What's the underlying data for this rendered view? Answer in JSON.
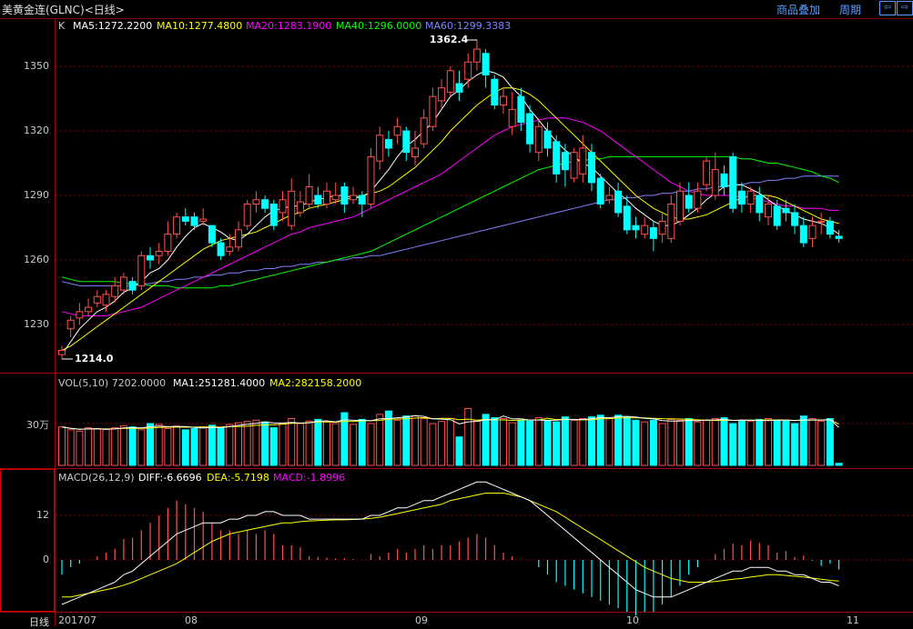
{
  "header": {
    "title": "美黄金连(GLNC)<日线>",
    "overlay_button": "商品叠加",
    "period_button": "周期",
    "nav_prev_glyph": "⇦",
    "nav_next_glyph": "⇨"
  },
  "price_panel": {
    "label_k": "K",
    "ma5": "MA5:1272.2200",
    "ma10": "MA10:1277.4800",
    "ma20": "MA20:1283.1900",
    "ma40": "MA40:1296.0000",
    "ma60": "MA60:1299.3383",
    "high_marker": "1362.4",
    "low_marker": "1214.0",
    "y_ticks": [
      "1350",
      "1320",
      "1290",
      "1260",
      "1230"
    ],
    "colors": {
      "ma5": "#ffffff",
      "ma10": "#ffff00",
      "ma20": "#ff00ff",
      "ma40": "#00ff00",
      "ma60": "#8080ff",
      "up": "#ff5050",
      "down": "#00ffff"
    }
  },
  "volume_panel": {
    "label": "VOL(5,10) 7202.0000",
    "ma1": "MA1:251281.4000",
    "ma2": "MA2:282158.2000",
    "y_tick": "30万"
  },
  "macd_panel": {
    "label": "MACD(26,12,9)",
    "diff": "DIFF:-6.6696",
    "dea": "DEA:-5.7198",
    "macd": "MACD:-1.8996",
    "y_ticks": [
      "12",
      "0"
    ]
  },
  "x_axis": {
    "period_label": "日线",
    "ticks": [
      "201707",
      "08",
      "09",
      "10",
      "11"
    ]
  },
  "chart_data": {
    "type": "candlestick",
    "y_range": [
      1210,
      1370
    ],
    "open": [
      1216,
      1228,
      1233,
      1236,
      1240,
      1239,
      1243,
      1246,
      1250,
      1248,
      1262,
      1262,
      1264,
      1272,
      1280,
      1280,
      1278,
      1276,
      1268,
      1264,
      1266,
      1276,
      1286,
      1288,
      1286,
      1282,
      1276,
      1282,
      1286,
      1290,
      1286,
      1288,
      1294,
      1288,
      1290,
      1286,
      1306,
      1316,
      1318,
      1320,
      1308,
      1314,
      1322,
      1334,
      1338,
      1342,
      1344,
      1352,
      1356,
      1344,
      1332,
      1322,
      1336,
      1328,
      1310,
      1320,
      1315,
      1310,
      1298,
      1300,
      1310,
      1298,
      1288,
      1292,
      1285,
      1276,
      1272,
      1275,
      1272,
      1270,
      1278,
      1290,
      1284,
      1295,
      1290,
      1300,
      1308,
      1292,
      1286,
      1290,
      1280,
      1285,
      1284,
      1282,
      1276,
      1270,
      1278,
      1278,
      1271
    ],
    "close": [
      1218,
      1232,
      1236,
      1238,
      1243,
      1244,
      1248,
      1252,
      1246,
      1262,
      1260,
      1264,
      1272,
      1280,
      1278,
      1276,
      1279,
      1268,
      1262,
      1266,
      1274,
      1286,
      1288,
      1284,
      1276,
      1288,
      1292,
      1287,
      1294,
      1286,
      1292,
      1290,
      1286,
      1290,
      1286,
      1308,
      1318,
      1312,
      1322,
      1310,
      1312,
      1326,
      1336,
      1340,
      1348,
      1338,
      1352,
      1358,
      1346,
      1332,
      1336,
      1330,
      1324,
      1314,
      1322,
      1312,
      1300,
      1302,
      1310,
      1312,
      1296,
      1286,
      1290,
      1282,
      1274,
      1274,
      1276,
      1270,
      1278,
      1286,
      1292,
      1284,
      1292,
      1306,
      1302,
      1294,
      1284,
      1286,
      1292,
      1282,
      1286,
      1276,
      1282,
      1276,
      1268,
      1276,
      1278,
      1272,
      1270
    ],
    "high": [
      1220,
      1234,
      1240,
      1242,
      1246,
      1246,
      1252,
      1254,
      1252,
      1264,
      1266,
      1268,
      1278,
      1282,
      1284,
      1282,
      1284,
      1276,
      1270,
      1272,
      1278,
      1288,
      1292,
      1290,
      1288,
      1292,
      1298,
      1292,
      1300,
      1294,
      1296,
      1296,
      1296,
      1294,
      1292,
      1312,
      1322,
      1320,
      1326,
      1322,
      1320,
      1330,
      1340,
      1344,
      1350,
      1348,
      1356,
      1362.4,
      1358,
      1346,
      1340,
      1338,
      1340,
      1332,
      1326,
      1324,
      1318,
      1314,
      1312,
      1318,
      1314,
      1300,
      1294,
      1296,
      1290,
      1280,
      1280,
      1278,
      1282,
      1290,
      1296,
      1296,
      1296,
      1308,
      1310,
      1304,
      1310,
      1296,
      1294,
      1294,
      1290,
      1288,
      1288,
      1286,
      1280,
      1280,
      1282,
      1280,
      1274
    ],
    "low": [
      1214,
      1224,
      1230,
      1234,
      1238,
      1236,
      1240,
      1244,
      1244,
      1246,
      1256,
      1258,
      1262,
      1270,
      1276,
      1274,
      1276,
      1266,
      1260,
      1262,
      1264,
      1274,
      1282,
      1282,
      1274,
      1278,
      1274,
      1280,
      1284,
      1284,
      1284,
      1286,
      1282,
      1286,
      1280,
      1284,
      1302,
      1308,
      1314,
      1306,
      1304,
      1312,
      1320,
      1330,
      1336,
      1334,
      1340,
      1348,
      1340,
      1330,
      1328,
      1318,
      1320,
      1310,
      1306,
      1308,
      1296,
      1294,
      1296,
      1296,
      1292,
      1284,
      1286,
      1280,
      1272,
      1270,
      1270,
      1264,
      1268,
      1268,
      1276,
      1282,
      1282,
      1292,
      1288,
      1290,
      1282,
      1282,
      1282,
      1278,
      1276,
      1274,
      1278,
      1272,
      1266,
      1266,
      1272,
      1270,
      1268
    ],
    "volume": [
      0.92,
      0.85,
      0.82,
      0.9,
      0.88,
      0.86,
      0.9,
      0.95,
      0.92,
      0.85,
      1.0,
      0.98,
      0.88,
      0.94,
      0.85,
      0.88,
      0.92,
      0.96,
      0.9,
      0.98,
      1.02,
      1.05,
      1.08,
      1.04,
      0.9,
      1.0,
      1.12,
      1.0,
      1.06,
      1.1,
      1.05,
      1.0,
      1.26,
      0.98,
      1.1,
      1.0,
      1.22,
      1.3,
      1.08,
      1.18,
      1.18,
      1.12,
      1.0,
      1.05,
      1.12,
      0.68,
      1.36,
      1.06,
      1.22,
      1.14,
      1.12,
      1.02,
      1.08,
      1.06,
      1.14,
      1.08,
      1.04,
      1.16,
      1.08,
      1.12,
      1.16,
      1.2,
      1.14,
      1.2,
      1.16,
      1.08,
      1.04,
      1.08,
      1.0,
      1.1,
      1.08,
      1.12,
      1.04,
      1.08,
      1.12,
      1.14,
      1.0,
      1.08,
      1.06,
      1.1,
      1.12,
      1.08,
      1.06,
      1.0,
      1.18,
      1.12,
      1.06,
      1.12,
      0.05
    ],
    "ma5": [
      1216,
      1222,
      1228,
      1232,
      1236,
      1238,
      1241,
      1245,
      1247,
      1250,
      1254,
      1256,
      1260,
      1266,
      1271,
      1275,
      1277,
      1275,
      1273,
      1270,
      1269,
      1272,
      1276,
      1280,
      1283,
      1284,
      1285,
      1285,
      1287,
      1288,
      1289,
      1290,
      1290,
      1289,
      1289,
      1292,
      1297,
      1302,
      1308,
      1313,
      1316,
      1320,
      1324,
      1330,
      1336,
      1339,
      1343,
      1346,
      1348,
      1347,
      1345,
      1340,
      1336,
      1330,
      1325,
      1320,
      1315,
      1311,
      1308,
      1305,
      1303,
      1299,
      1295,
      1291,
      1288,
      1284,
      1281,
      1278,
      1276,
      1276,
      1278,
      1281,
      1284,
      1288,
      1291,
      1294,
      1295,
      1295,
      1293,
      1291,
      1288,
      1285,
      1283,
      1281,
      1279,
      1278,
      1277,
      1275,
      1272
    ],
    "ma10": [
      1218,
      1220,
      1223,
      1226,
      1229,
      1232,
      1235,
      1238,
      1241,
      1244,
      1247,
      1250,
      1253,
      1256,
      1259,
      1262,
      1265,
      1267,
      1269,
      1270,
      1271,
      1272,
      1273,
      1275,
      1277,
      1279,
      1281,
      1282,
      1284,
      1285,
      1286,
      1287,
      1288,
      1289,
      1290,
      1291,
      1292,
      1294,
      1297,
      1300,
      1303,
      1307,
      1311,
      1315,
      1320,
      1324,
      1328,
      1332,
      1335,
      1338,
      1340,
      1340,
      1339,
      1337,
      1334,
      1330,
      1326,
      1322,
      1318,
      1314,
      1310,
      1306,
      1302,
      1298,
      1294,
      1290,
      1287,
      1284,
      1282,
      1280,
      1279,
      1279,
      1280,
      1281,
      1283,
      1285,
      1287,
      1289,
      1290,
      1290,
      1290,
      1289,
      1287,
      1285,
      1283,
      1281,
      1279,
      1278,
      1277
    ],
    "ma20": [
      1236,
      1235,
      1234,
      1234,
      1234,
      1234,
      1235,
      1236,
      1237,
      1238,
      1240,
      1242,
      1244,
      1246,
      1248,
      1250,
      1252,
      1254,
      1256,
      1258,
      1260,
      1262,
      1264,
      1266,
      1268,
      1270,
      1272,
      1273,
      1275,
      1276,
      1277,
      1278,
      1279,
      1280,
      1282,
      1284,
      1286,
      1288,
      1290,
      1292,
      1294,
      1296,
      1298,
      1300,
      1303,
      1306,
      1309,
      1312,
      1315,
      1318,
      1320,
      1322,
      1323,
      1324,
      1325,
      1326,
      1326,
      1326,
      1325,
      1324,
      1322,
      1320,
      1317,
      1314,
      1311,
      1308,
      1305,
      1302,
      1299,
      1296,
      1294,
      1292,
      1291,
      1290,
      1290,
      1290,
      1290,
      1289,
      1289,
      1288,
      1287,
      1286,
      1285,
      1285,
      1284,
      1284,
      1284,
      1283,
      1283
    ],
    "ma40": [
      1252,
      1251,
      1250,
      1250,
      1250,
      1250,
      1250,
      1249,
      1249,
      1249,
      1248,
      1248,
      1248,
      1247,
      1247,
      1247,
      1247,
      1247,
      1248,
      1248,
      1249,
      1250,
      1251,
      1252,
      1253,
      1254,
      1255,
      1256,
      1257,
      1258,
      1259,
      1260,
      1261,
      1262,
      1263,
      1264,
      1266,
      1268,
      1270,
      1272,
      1274,
      1276,
      1278,
      1280,
      1282,
      1284,
      1286,
      1288,
      1290,
      1292,
      1294,
      1296,
      1298,
      1300,
      1302,
      1303,
      1304,
      1305,
      1306,
      1306,
      1307,
      1307,
      1308,
      1308,
      1308,
      1308,
      1308,
      1308,
      1308,
      1308,
      1308,
      1308,
      1308,
      1308,
      1308,
      1308,
      1308,
      1307,
      1307,
      1306,
      1305,
      1305,
      1304,
      1303,
      1302,
      1301,
      1299,
      1298,
      1296
    ],
    "ma60": [
      1250,
      1249,
      1248,
      1248,
      1248,
      1248,
      1248,
      1248,
      1248,
      1249,
      1249,
      1250,
      1250,
      1251,
      1251,
      1252,
      1252,
      1253,
      1253,
      1254,
      1254,
      1255,
      1255,
      1256,
      1256,
      1257,
      1257,
      1258,
      1258,
      1259,
      1259,
      1260,
      1260,
      1261,
      1261,
      1262,
      1262,
      1263,
      1264,
      1265,
      1266,
      1267,
      1268,
      1269,
      1270,
      1271,
      1272,
      1273,
      1274,
      1275,
      1276,
      1277,
      1278,
      1279,
      1280,
      1281,
      1282,
      1283,
      1284,
      1285,
      1286,
      1287,
      1288,
      1288,
      1289,
      1289,
      1290,
      1290,
      1291,
      1291,
      1292,
      1292,
      1293,
      1293,
      1294,
      1294,
      1295,
      1295,
      1296,
      1296,
      1297,
      1297,
      1298,
      1298,
      1299,
      1299,
      1299,
      1299,
      1299
    ],
    "diff": [
      -12,
      -11,
      -10,
      -9,
      -8,
      -7,
      -6,
      -4,
      -3,
      -1,
      1,
      3,
      5,
      7,
      8,
      9,
      10,
      10,
      10,
      11,
      11,
      12,
      12,
      13,
      13,
      12,
      12,
      12,
      11,
      11,
      11,
      11,
      11,
      11,
      11,
      12,
      12,
      13,
      14,
      14,
      15,
      16,
      16,
      17,
      18,
      19,
      20,
      21,
      21,
      20,
      19,
      18,
      17,
      16,
      14,
      12,
      10,
      8,
      6,
      4,
      2,
      0,
      -2,
      -4,
      -6,
      -8,
      -9,
      -10,
      -10,
      -10,
      -9,
      -8,
      -7,
      -6,
      -5,
      -4,
      -3,
      -3,
      -2,
      -2,
      -2,
      -3,
      -3,
      -4,
      -4,
      -5,
      -6,
      -6,
      -7
    ],
    "dea": [
      -10,
      -10,
      -9.5,
      -9,
      -8.5,
      -8,
      -7.5,
      -6.8,
      -6,
      -5,
      -4,
      -3,
      -2,
      -1,
      0.5,
      2,
      3.5,
      5,
      6,
      7,
      7.5,
      8,
      8.5,
      9,
      9.5,
      10,
      10,
      10.3,
      10.5,
      10.6,
      10.7,
      10.8,
      10.8,
      10.9,
      11,
      11.2,
      11.5,
      12,
      12.5,
      13,
      13.5,
      14,
      14.5,
      15,
      16,
      16.5,
      17,
      17.5,
      18,
      18,
      18,
      17.5,
      17,
      16,
      15,
      14,
      13,
      11.5,
      10,
      8.5,
      7,
      5.5,
      4,
      2.5,
      1,
      -0.5,
      -2,
      -3,
      -4,
      -5,
      -5.5,
      -6,
      -6,
      -6,
      -5.8,
      -5.5,
      -5.2,
      -5,
      -4.6,
      -4.3,
      -4,
      -4,
      -4.2,
      -4.4,
      -4.6,
      -4.9,
      -5.2,
      -5.5,
      -5.7
    ]
  }
}
